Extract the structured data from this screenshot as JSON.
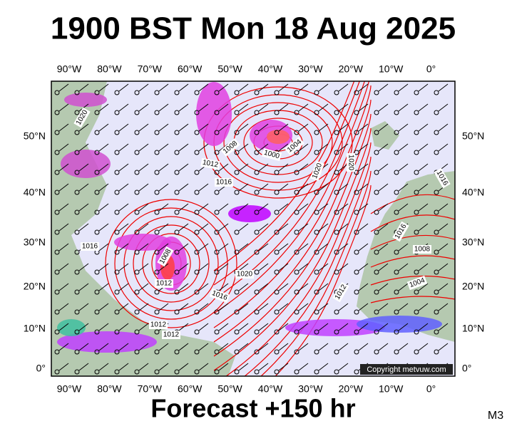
{
  "header": {
    "title": "1900 BST Mon 18 Aug 2025"
  },
  "map": {
    "lon_labels": [
      "90°W",
      "80°W",
      "70°W",
      "60°W",
      "50°W",
      "40°W",
      "30°W",
      "20°W",
      "10°W",
      "0°"
    ],
    "lat_labels": [
      "50°N",
      "40°N",
      "30°N",
      "20°N",
      "10°N",
      "0°"
    ],
    "isobar_labels": [
      "1020",
      "1008",
      "1012",
      "1016",
      "1000",
      "1004",
      "1020",
      "1020",
      "1016",
      "1008",
      "1012",
      "1020",
      "1016",
      "1012",
      "1012",
      "1012",
      "1016",
      "1008",
      "1004",
      "1016"
    ],
    "copyright": "Copyright metvuw.com"
  },
  "footer": {
    "forecast": "Forecast +150 hr",
    "model": "M3"
  }
}
